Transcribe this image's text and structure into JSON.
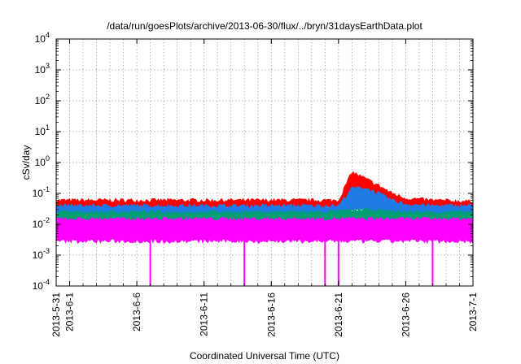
{
  "chart_data": {
    "type": "line",
    "title": "/data/run/goesPlots/archive/2013-06-30/flux/../bryn/31daysEarthData.plot",
    "xlabel": "Coordinated Universal Time (UTC)",
    "ylabel": "cSv/day",
    "y_scale": "log",
    "ylim": [
      0.0001,
      10000
    ],
    "xlim": [
      "2013-05-31",
      "2013-07-01"
    ],
    "x_ticks": [
      "2013-5-31",
      "2013-6-1",
      "2013-6-6",
      "2013-6-11",
      "2013-6-16",
      "2013-6-21",
      "2013-6-26",
      "2013-7-1"
    ],
    "y_ticks": [
      {
        "value": 0.0001,
        "base": "10",
        "exp": "-4"
      },
      {
        "value": 0.001,
        "base": "10",
        "exp": "-3"
      },
      {
        "value": 0.01,
        "base": "10",
        "exp": "-2"
      },
      {
        "value": 0.1,
        "base": "10",
        "exp": "-1"
      },
      {
        "value": 1,
        "base": "10",
        "exp": "0"
      },
      {
        "value": 10,
        "base": "10",
        "exp": "1"
      },
      {
        "value": 100,
        "base": "10",
        "exp": "2"
      },
      {
        "value": 1000,
        "base": "10",
        "exp": "3"
      },
      {
        "value": 10000,
        "base": "10",
        "exp": "4"
      }
    ],
    "grid": true,
    "legend": "none",
    "series": [
      {
        "color": "#ff0000",
        "x": [
          "2013-05-31",
          "2013-06-03",
          "2013-06-06",
          "2013-06-09",
          "2013-06-12",
          "2013-06-15",
          "2013-06-18",
          "2013-06-21",
          "2013-06-22",
          "2013-06-23",
          "2013-06-24",
          "2013-06-25",
          "2013-06-26",
          "2013-06-28",
          "2013-07-01"
        ],
        "y_low": [
          0.035,
          0.035,
          0.035,
          0.035,
          0.035,
          0.035,
          0.035,
          0.035,
          0.1,
          0.1,
          0.07,
          0.05,
          0.04,
          0.035,
          0.035
        ],
        "y_high": [
          0.06,
          0.06,
          0.06,
          0.06,
          0.06,
          0.06,
          0.06,
          0.06,
          0.5,
          0.3,
          0.18,
          0.1,
          0.07,
          0.06,
          0.055
        ]
      },
      {
        "color": "#1e7be6",
        "x": [
          "2013-05-31",
          "2013-06-03",
          "2013-06-06",
          "2013-06-09",
          "2013-06-12",
          "2013-06-15",
          "2013-06-18",
          "2013-06-21",
          "2013-06-22",
          "2013-06-23",
          "2013-06-24",
          "2013-06-25",
          "2013-06-26",
          "2013-06-28",
          "2013-07-01"
        ],
        "y_low": [
          0.02,
          0.02,
          0.02,
          0.02,
          0.02,
          0.02,
          0.02,
          0.02,
          0.03,
          0.03,
          0.025,
          0.02,
          0.02,
          0.02,
          0.02
        ],
        "y_high": [
          0.04,
          0.04,
          0.04,
          0.04,
          0.04,
          0.04,
          0.04,
          0.04,
          0.15,
          0.15,
          0.1,
          0.06,
          0.045,
          0.04,
          0.04
        ]
      },
      {
        "color": "#009e73",
        "x": [
          "2013-05-31",
          "2013-06-10",
          "2013-06-20",
          "2013-06-23",
          "2013-06-26",
          "2013-07-01"
        ],
        "y_low": [
          0.012,
          0.012,
          0.012,
          0.008,
          0.012,
          0.012
        ],
        "y_high": [
          0.025,
          0.025,
          0.025,
          0.03,
          0.025,
          0.025
        ]
      },
      {
        "color": "#ff00ff",
        "x": [
          "2013-05-31",
          "2013-06-10",
          "2013-06-20",
          "2013-07-01"
        ],
        "y_low": [
          0.003,
          0.003,
          0.003,
          0.003
        ],
        "y_high": [
          0.015,
          0.015,
          0.015,
          0.015
        ],
        "dips": [
          "2013-06-07",
          "2013-06-14",
          "2013-06-20",
          "2013-06-21",
          "2013-06-28"
        ],
        "dip_value": 0.0001
      }
    ]
  }
}
